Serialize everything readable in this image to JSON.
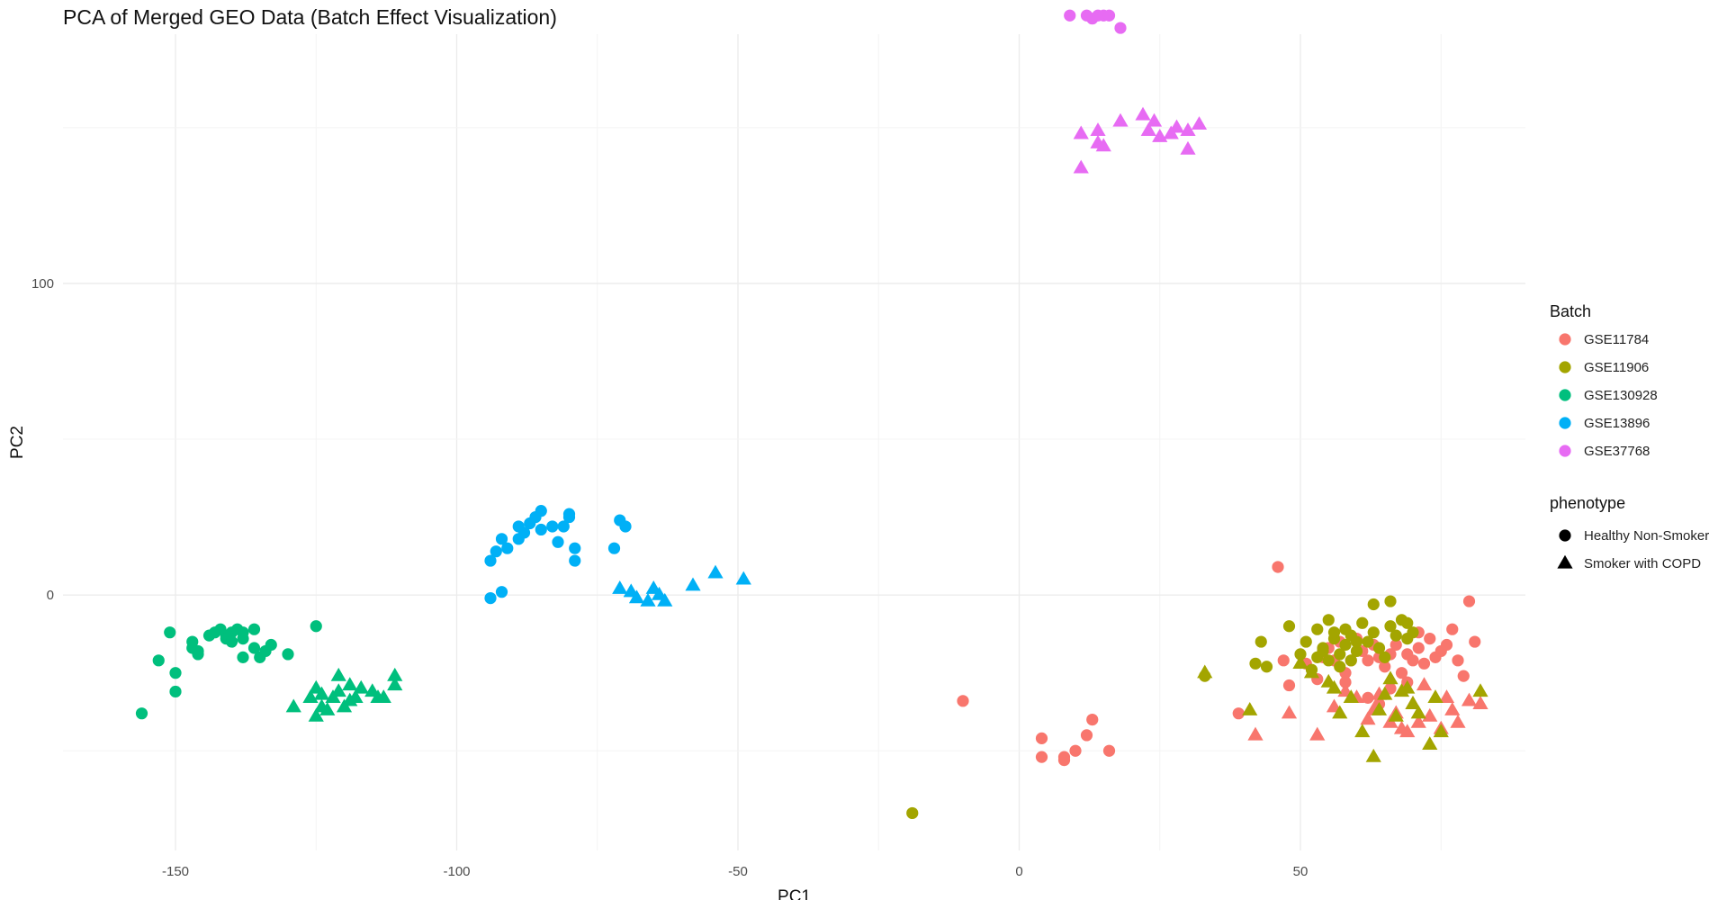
{
  "chart_data": {
    "type": "scatter",
    "title": "PCA of Merged GEO Data (Batch Effect Visualization)",
    "xlabel": "PC1",
    "ylabel": "PC2",
    "xlim": [
      -170,
      90
    ],
    "ylim": [
      -82,
      180
    ],
    "x_ticks": [
      -150,
      -100,
      -50,
      0,
      50
    ],
    "y_ticks": [
      0,
      100
    ],
    "x_tick_labels": [
      "-150",
      "-100",
      "-50",
      "0",
      "50"
    ],
    "y_tick_labels": [
      "0",
      "100"
    ],
    "grid": true,
    "legend_position": "right",
    "legend": {
      "color_title": "Batch",
      "shape_title": "phenotype",
      "batches": [
        {
          "name": "GSE11784",
          "color": "#F8766D"
        },
        {
          "name": "GSE11906",
          "color": "#A3A500"
        },
        {
          "name": "GSE130928",
          "color": "#00BF7D"
        },
        {
          "name": "GSE13896",
          "color": "#00B0F6"
        },
        {
          "name": "GSE37768",
          "color": "#E76BF3"
        }
      ],
      "phenotypes": [
        {
          "name": "Healthy Non-Smoker",
          "shape": "circle"
        },
        {
          "name": "Smoker with COPD",
          "shape": "triangle"
        }
      ]
    },
    "series": [
      {
        "batch": "GSE130928",
        "phenotype": "Healthy Non-Smoker",
        "points": [
          [
            -156,
            -38
          ],
          [
            -153,
            -21
          ],
          [
            -151,
            -12
          ],
          [
            -150,
            -25
          ],
          [
            -150,
            -31
          ],
          [
            -147,
            -17
          ],
          [
            -147,
            -15
          ],
          [
            -146,
            -18
          ],
          [
            -146,
            -19
          ],
          [
            -144,
            -13
          ],
          [
            -143,
            -12
          ],
          [
            -142,
            -11
          ],
          [
            -141,
            -13
          ],
          [
            -141,
            -14
          ],
          [
            -140,
            -12
          ],
          [
            -140,
            -15
          ],
          [
            -139,
            -11
          ],
          [
            -138,
            -12
          ],
          [
            -138,
            -14
          ],
          [
            -138,
            -20
          ],
          [
            -136,
            -11
          ],
          [
            -136,
            -17
          ],
          [
            -135,
            -20
          ],
          [
            -134,
            -18
          ],
          [
            -133,
            -16
          ],
          [
            -130,
            -19
          ],
          [
            -125,
            -10
          ]
        ]
      },
      {
        "batch": "GSE130928",
        "phenotype": "Smoker with COPD",
        "points": [
          [
            -129,
            -36
          ],
          [
            -126,
            -33
          ],
          [
            -125,
            -39
          ],
          [
            -125,
            -30
          ],
          [
            -124,
            -32
          ],
          [
            -124,
            -36
          ],
          [
            -123,
            -37
          ],
          [
            -122,
            -33
          ],
          [
            -121,
            -31
          ],
          [
            -121,
            -26
          ],
          [
            -120,
            -36
          ],
          [
            -119,
            -34
          ],
          [
            -119,
            -29
          ],
          [
            -118,
            -33
          ],
          [
            -117,
            -30
          ],
          [
            -115,
            -31
          ],
          [
            -114,
            -33
          ],
          [
            -113,
            -33
          ],
          [
            -111,
            -29
          ],
          [
            -111,
            -26
          ]
        ]
      },
      {
        "batch": "GSE13896",
        "phenotype": "Healthy Non-Smoker",
        "points": [
          [
            -94,
            11
          ],
          [
            -94,
            -1
          ],
          [
            -93,
            14
          ],
          [
            -92,
            18
          ],
          [
            -92,
            1
          ],
          [
            -91,
            15
          ],
          [
            -89,
            18
          ],
          [
            -89,
            22
          ],
          [
            -88,
            20
          ],
          [
            -87,
            23
          ],
          [
            -86,
            25
          ],
          [
            -85,
            21
          ],
          [
            -85,
            27
          ],
          [
            -83,
            22
          ],
          [
            -82,
            17
          ],
          [
            -81,
            22
          ],
          [
            -80,
            25
          ],
          [
            -80,
            26
          ],
          [
            -79,
            15
          ],
          [
            -79,
            11
          ],
          [
            -72,
            15
          ],
          [
            -71,
            24
          ],
          [
            -70,
            22
          ]
        ]
      },
      {
        "batch": "GSE13896",
        "phenotype": "Smoker with COPD",
        "points": [
          [
            -71,
            2
          ],
          [
            -69,
            1
          ],
          [
            -68,
            -1
          ],
          [
            -66,
            -2
          ],
          [
            -65,
            2
          ],
          [
            -64,
            0
          ],
          [
            -63,
            -2
          ],
          [
            -58,
            3
          ],
          [
            -54,
            7
          ],
          [
            -49,
            5
          ]
        ]
      },
      {
        "batch": "GSE37768",
        "phenotype": "Healthy Non-Smoker",
        "points": [
          [
            9,
            186
          ],
          [
            12,
            186
          ],
          [
            13,
            185
          ],
          [
            14,
            186
          ],
          [
            15,
            186
          ],
          [
            16,
            186
          ],
          [
            18,
            182
          ]
        ]
      },
      {
        "batch": "GSE37768",
        "phenotype": "Smoker with COPD",
        "points": [
          [
            11,
            137
          ],
          [
            11,
            148
          ],
          [
            14,
            149
          ],
          [
            14,
            145
          ],
          [
            15,
            144
          ],
          [
            18,
            152
          ],
          [
            22,
            154
          ],
          [
            23,
            149
          ],
          [
            24,
            152
          ],
          [
            25,
            147
          ],
          [
            27,
            148
          ],
          [
            28,
            150
          ],
          [
            30,
            149
          ],
          [
            32,
            151
          ],
          [
            30,
            143
          ]
        ]
      },
      {
        "batch": "GSE11784",
        "phenotype": "Healthy Non-Smoker",
        "points": [
          [
            -10,
            -34
          ],
          [
            4,
            -52
          ],
          [
            4,
            -46
          ],
          [
            8,
            -53
          ],
          [
            8,
            -52
          ],
          [
            10,
            -50
          ],
          [
            12,
            -45
          ],
          [
            13,
            -40
          ],
          [
            16,
            -50
          ],
          [
            39,
            -38
          ],
          [
            46,
            9
          ],
          [
            47,
            -21
          ],
          [
            48,
            -29
          ],
          [
            51,
            -22
          ],
          [
            53,
            -27
          ],
          [
            54,
            -20
          ],
          [
            55,
            -17
          ],
          [
            56,
            -21
          ],
          [
            57,
            -15
          ],
          [
            58,
            -25
          ],
          [
            59,
            -21
          ],
          [
            60,
            -14
          ],
          [
            61,
            -18
          ],
          [
            62,
            -21
          ],
          [
            63,
            -16
          ],
          [
            64,
            -20
          ],
          [
            65,
            -23
          ],
          [
            66,
            -19
          ],
          [
            67,
            -16
          ],
          [
            68,
            -25
          ],
          [
            69,
            -19
          ],
          [
            70,
            -21
          ],
          [
            71,
            -17
          ],
          [
            72,
            -22
          ],
          [
            73,
            -14
          ],
          [
            74,
            -20
          ],
          [
            75,
            -18
          ],
          [
            76,
            -16
          ],
          [
            77,
            -11
          ],
          [
            78,
            -21
          ],
          [
            79,
            -26
          ],
          [
            80,
            -2
          ],
          [
            81,
            -15
          ],
          [
            62,
            -33
          ],
          [
            66,
            -30
          ],
          [
            58,
            -28
          ],
          [
            71,
            -12
          ],
          [
            69,
            -28
          ],
          [
            64,
            -35
          ]
        ]
      },
      {
        "batch": "GSE11784",
        "phenotype": "Smoker with COPD",
        "points": [
          [
            42,
            -45
          ],
          [
            48,
            -38
          ],
          [
            53,
            -45
          ],
          [
            56,
            -36
          ],
          [
            58,
            -31
          ],
          [
            60,
            -33
          ],
          [
            63,
            -37
          ],
          [
            64,
            -32
          ],
          [
            66,
            -41
          ],
          [
            67,
            -38
          ],
          [
            68,
            -43
          ],
          [
            70,
            -35
          ],
          [
            71,
            -41
          ],
          [
            72,
            -29
          ],
          [
            73,
            -39
          ],
          [
            75,
            -43
          ],
          [
            76,
            -33
          ],
          [
            77,
            -37
          ],
          [
            78,
            -41
          ],
          [
            80,
            -34
          ],
          [
            82,
            -35
          ],
          [
            62,
            -40
          ],
          [
            69,
            -44
          ]
        ]
      },
      {
        "batch": "GSE11906",
        "phenotype": "Healthy Non-Smoker",
        "points": [
          [
            -19,
            -70
          ],
          [
            33,
            -26
          ],
          [
            42,
            -22
          ],
          [
            43,
            -15
          ],
          [
            44,
            -23
          ],
          [
            48,
            -10
          ],
          [
            50,
            -19
          ],
          [
            51,
            -15
          ],
          [
            52,
            -24
          ],
          [
            53,
            -11
          ],
          [
            54,
            -17
          ],
          [
            55,
            -21
          ],
          [
            56,
            -14
          ],
          [
            57,
            -19
          ],
          [
            58,
            -16
          ],
          [
            59,
            -13
          ],
          [
            60,
            -18
          ],
          [
            61,
            -9
          ],
          [
            62,
            -15
          ],
          [
            63,
            -12
          ],
          [
            64,
            -17
          ],
          [
            65,
            -20
          ],
          [
            66,
            -10
          ],
          [
            67,
            -13
          ],
          [
            68,
            -8
          ],
          [
            69,
            -14
          ],
          [
            70,
            -12
          ],
          [
            55,
            -8
          ],
          [
            57,
            -23
          ],
          [
            59,
            -21
          ],
          [
            53,
            -20
          ],
          [
            56,
            -12
          ],
          [
            58,
            -11
          ],
          [
            60,
            -15
          ],
          [
            63,
            -3
          ],
          [
            66,
            -2
          ],
          [
            69,
            -9
          ],
          [
            54,
            -18
          ]
        ]
      },
      {
        "batch": "GSE11906",
        "phenotype": "Smoker with COPD",
        "points": [
          [
            33,
            -25
          ],
          [
            41,
            -37
          ],
          [
            50,
            -22
          ],
          [
            55,
            -28
          ],
          [
            56,
            -30
          ],
          [
            57,
            -38
          ],
          [
            61,
            -44
          ],
          [
            63,
            -52
          ],
          [
            64,
            -37
          ],
          [
            65,
            -32
          ],
          [
            66,
            -27
          ],
          [
            67,
            -39
          ],
          [
            68,
            -31
          ],
          [
            69,
            -30
          ],
          [
            70,
            -35
          ],
          [
            71,
            -38
          ],
          [
            73,
            -48
          ],
          [
            74,
            -33
          ],
          [
            75,
            -44
          ],
          [
            82,
            -31
          ],
          [
            52,
            -25
          ],
          [
            59,
            -33
          ]
        ]
      }
    ]
  }
}
